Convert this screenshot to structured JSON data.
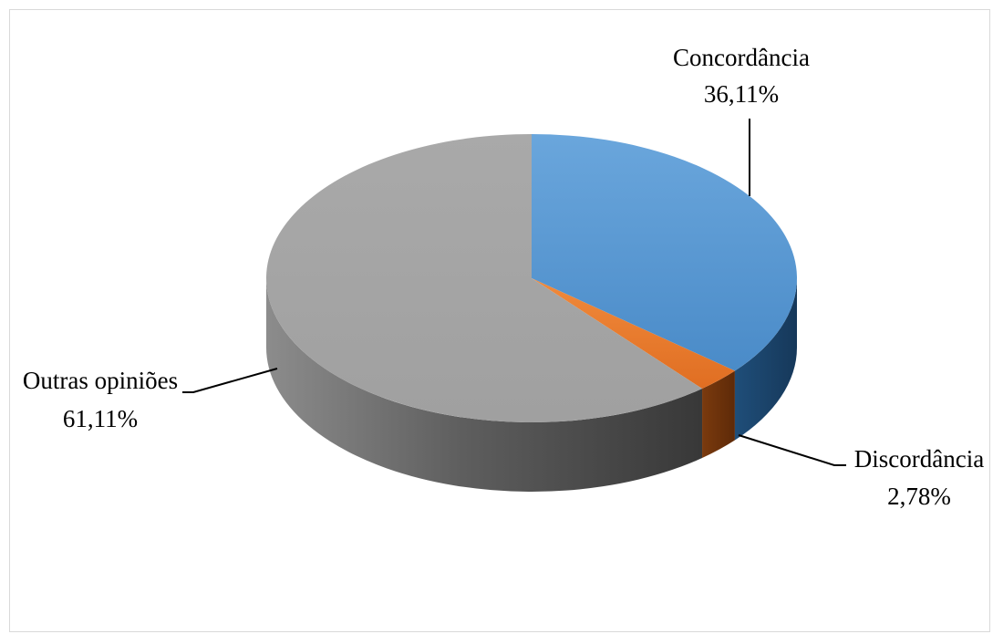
{
  "chart_data": {
    "type": "pie",
    "style": "3d",
    "title": "",
    "slices": [
      {
        "label": "Concordância",
        "value": 36.11,
        "value_text": "36,11%",
        "color": "#5b9bd5"
      },
      {
        "label": "Discordância",
        "value": 2.78,
        "value_text": "2,78%",
        "color": "#ed7d31"
      },
      {
        "label": "Outras opiniões",
        "value": 61.11,
        "value_text": "61,11%",
        "color": "#a5a5a5"
      }
    ],
    "legend": "none",
    "data_labels": "category-and-percentage-outside-with-leader-lines"
  }
}
